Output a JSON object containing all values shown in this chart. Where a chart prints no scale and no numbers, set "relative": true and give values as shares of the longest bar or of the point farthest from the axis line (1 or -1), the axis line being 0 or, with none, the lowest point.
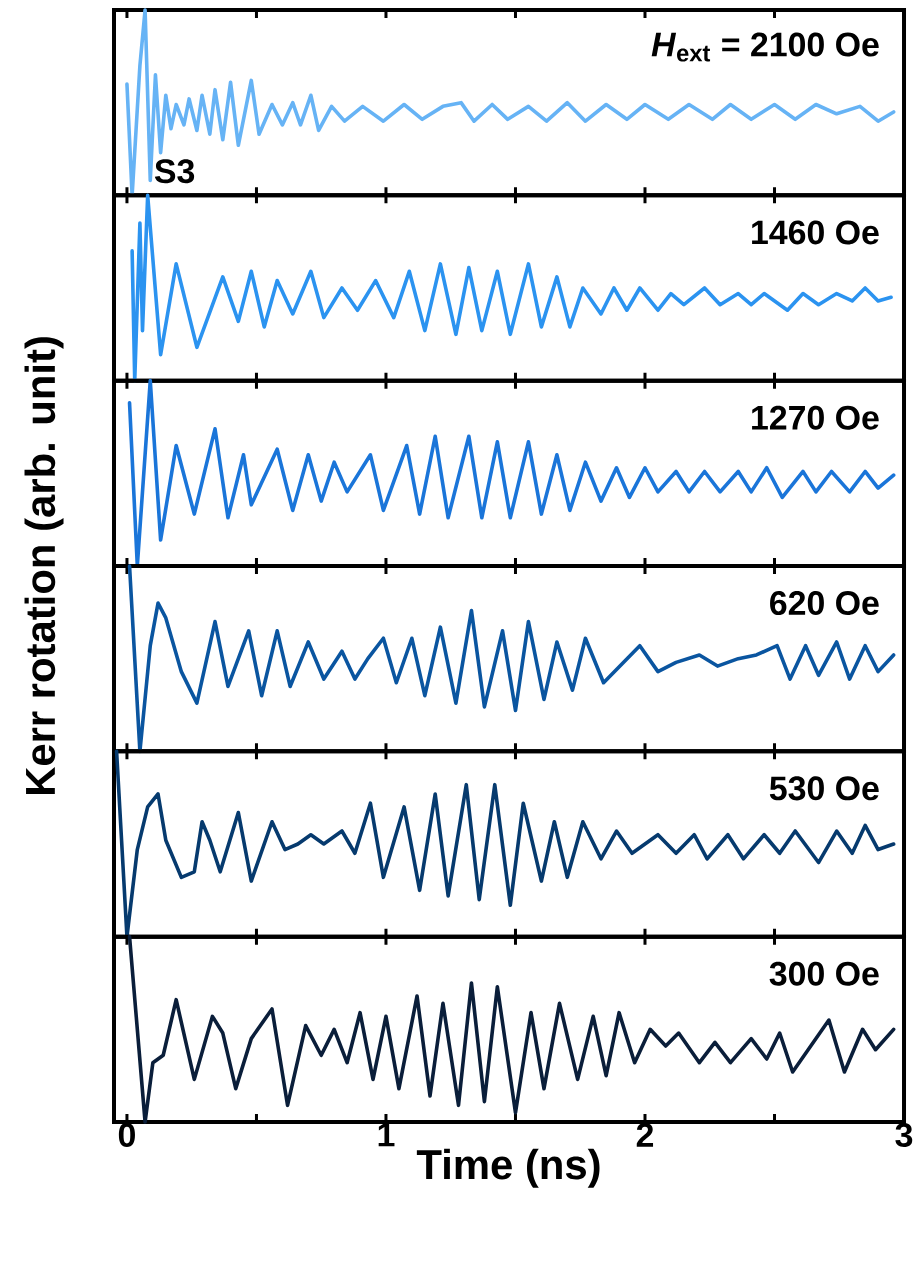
{
  "chart_data": [
    {
      "type": "line",
      "relative": true,
      "color": "#66b3f5",
      "xlim": [
        -0.05,
        3
      ],
      "xticks": [
        0,
        {
          "value": 0.5,
          "label": null
        },
        1,
        {
          "value": 1.5,
          "label": null
        },
        2,
        {
          "value": 2.5,
          "label": null
        },
        3
      ],
      "tick_labels": false,
      "annotations": [
        "*H*$_{ext}$ = 2100 Oe",
        "S3"
      ],
      "x": [
        0.0,
        0.02,
        0.05,
        0.07,
        0.09,
        0.11,
        0.13,
        0.15,
        0.17,
        0.19,
        0.22,
        0.24,
        0.27,
        0.29,
        0.32,
        0.34,
        0.37,
        0.4,
        0.43,
        0.48,
        0.51,
        0.56,
        0.6,
        0.64,
        0.67,
        0.71,
        0.74,
        0.79,
        0.84,
        0.91,
        0.99,
        1.07,
        1.14,
        1.22,
        1.29,
        1.34,
        1.41,
        1.47,
        1.55,
        1.62,
        1.7,
        1.77,
        1.85,
        1.93,
        2.0,
        2.09,
        2.17,
        2.26,
        2.33,
        2.41,
        2.5,
        2.58,
        2.66,
        2.74,
        2.83,
        2.9,
        2.96
      ],
      "values": [
        0.6,
        0.0,
        0.7,
        1.0,
        0.08,
        0.65,
        0.23,
        0.54,
        0.36,
        0.49,
        0.38,
        0.52,
        0.35,
        0.54,
        0.33,
        0.57,
        0.3,
        0.61,
        0.27,
        0.62,
        0.33,
        0.49,
        0.38,
        0.5,
        0.38,
        0.54,
        0.35,
        0.48,
        0.4,
        0.48,
        0.4,
        0.49,
        0.41,
        0.48,
        0.5,
        0.4,
        0.49,
        0.41,
        0.48,
        0.4,
        0.5,
        0.4,
        0.49,
        0.41,
        0.49,
        0.41,
        0.49,
        0.41,
        0.49,
        0.41,
        0.49,
        0.41,
        0.49,
        0.44,
        0.48,
        0.4,
        0.45
      ]
    },
    {
      "type": "line",
      "relative": true,
      "color": "#2b93f0",
      "xlim": [
        -0.05,
        3
      ],
      "xticks": [
        0,
        {
          "value": 0.5,
          "label": null
        },
        1,
        {
          "value": 1.5,
          "label": null
        },
        2,
        {
          "value": 2.5,
          "label": null
        },
        3
      ],
      "tick_labels": false,
      "annotations": [
        "1460 Oe"
      ],
      "x": [
        0.02,
        0.03,
        0.05,
        0.06,
        0.08,
        0.13,
        0.19,
        0.27,
        0.37,
        0.43,
        0.48,
        0.53,
        0.58,
        0.64,
        0.71,
        0.76,
        0.83,
        0.89,
        0.96,
        1.03,
        1.09,
        1.15,
        1.21,
        1.27,
        1.32,
        1.37,
        1.43,
        1.48,
        1.55,
        1.6,
        1.66,
        1.71,
        1.76,
        1.83,
        1.88,
        1.93,
        1.98,
        2.05,
        2.1,
        2.15,
        2.23,
        2.29,
        2.36,
        2.41,
        2.46,
        2.55,
        2.61,
        2.67,
        2.74,
        2.8,
        2.85,
        2.9,
        2.95
      ],
      "values": [
        0.7,
        0.0,
        0.85,
        0.27,
        1.0,
        0.14,
        0.63,
        0.18,
        0.56,
        0.32,
        0.59,
        0.29,
        0.54,
        0.36,
        0.59,
        0.34,
        0.5,
        0.38,
        0.54,
        0.34,
        0.59,
        0.27,
        0.63,
        0.25,
        0.61,
        0.27,
        0.59,
        0.25,
        0.63,
        0.29,
        0.56,
        0.29,
        0.5,
        0.36,
        0.5,
        0.38,
        0.5,
        0.38,
        0.47,
        0.41,
        0.5,
        0.41,
        0.47,
        0.41,
        0.47,
        0.38,
        0.47,
        0.41,
        0.47,
        0.43,
        0.5,
        0.43,
        0.45
      ]
    },
    {
      "type": "line",
      "relative": true,
      "color": "#1a75d9",
      "xlim": [
        -0.05,
        3
      ],
      "xticks": [
        0,
        {
          "value": 0.5,
          "label": null
        },
        1,
        {
          "value": 1.5,
          "label": null
        },
        2,
        {
          "value": 2.5,
          "label": null
        },
        3
      ],
      "tick_labels": false,
      "ylabel": "Kerr rotation (arb. unit)",
      "annotations": [
        "1270 Oe"
      ],
      "x": [
        0.01,
        0.04,
        0.09,
        0.13,
        0.19,
        0.26,
        0.34,
        0.39,
        0.45,
        0.48,
        0.58,
        0.64,
        0.7,
        0.75,
        0.8,
        0.85,
        0.94,
        0.99,
        1.08,
        1.13,
        1.19,
        1.24,
        1.32,
        1.37,
        1.43,
        1.48,
        1.55,
        1.6,
        1.66,
        1.71,
        1.77,
        1.83,
        1.89,
        1.94,
        2.0,
        2.05,
        2.12,
        2.17,
        2.23,
        2.29,
        2.36,
        2.41,
        2.47,
        2.53,
        2.61,
        2.66,
        2.72,
        2.79,
        2.85,
        2.9,
        2.96
      ],
      "values": [
        0.88,
        0.0,
        1.0,
        0.14,
        0.65,
        0.28,
        0.74,
        0.26,
        0.6,
        0.33,
        0.63,
        0.3,
        0.6,
        0.35,
        0.56,
        0.4,
        0.6,
        0.3,
        0.65,
        0.28,
        0.7,
        0.26,
        0.7,
        0.26,
        0.67,
        0.26,
        0.67,
        0.28,
        0.6,
        0.3,
        0.56,
        0.35,
        0.53,
        0.37,
        0.53,
        0.4,
        0.51,
        0.4,
        0.51,
        0.4,
        0.51,
        0.4,
        0.53,
        0.37,
        0.51,
        0.4,
        0.51,
        0.4,
        0.51,
        0.42,
        0.49
      ]
    },
    {
      "type": "line",
      "relative": true,
      "color": "#0a55a0",
      "xlim": [
        -0.05,
        3
      ],
      "xticks": [
        0,
        {
          "value": 0.5,
          "label": null
        },
        1,
        {
          "value": 1.5,
          "label": null
        },
        2,
        {
          "value": 2.5,
          "label": null
        },
        3
      ],
      "tick_labels": false,
      "annotations": [
        "620 Oe"
      ],
      "x": [
        0.01,
        0.05,
        0.09,
        0.12,
        0.15,
        0.21,
        0.27,
        0.34,
        0.39,
        0.47,
        0.52,
        0.58,
        0.63,
        0.7,
        0.76,
        0.83,
        0.88,
        0.93,
        0.99,
        1.04,
        1.1,
        1.15,
        1.21,
        1.27,
        1.33,
        1.38,
        1.45,
        1.5,
        1.55,
        1.61,
        1.66,
        1.72,
        1.77,
        1.84,
        1.98,
        2.05,
        2.12,
        2.21,
        2.28,
        2.36,
        2.43,
        2.51,
        2.56,
        2.62,
        2.67,
        2.74,
        2.79,
        2.85,
        2.9,
        2.96
      ],
      "values": [
        1.0,
        0.0,
        0.57,
        0.8,
        0.72,
        0.43,
        0.26,
        0.7,
        0.35,
        0.65,
        0.3,
        0.65,
        0.35,
        0.59,
        0.39,
        0.54,
        0.39,
        0.5,
        0.61,
        0.37,
        0.61,
        0.3,
        0.67,
        0.26,
        0.76,
        0.24,
        0.65,
        0.22,
        0.7,
        0.28,
        0.59,
        0.33,
        0.61,
        0.37,
        0.57,
        0.43,
        0.48,
        0.52,
        0.46,
        0.5,
        0.52,
        0.57,
        0.39,
        0.57,
        0.41,
        0.59,
        0.39,
        0.57,
        0.43,
        0.52
      ]
    },
    {
      "type": "line",
      "relative": true,
      "color": "#063a6e",
      "xlim": [
        -0.05,
        3
      ],
      "xticks": [
        0,
        {
          "value": 0.5,
          "label": null
        },
        1,
        {
          "value": 1.5,
          "label": null
        },
        2,
        {
          "value": 2.5,
          "label": null
        },
        3
      ],
      "tick_labels": false,
      "annotations": [
        "530 Oe"
      ],
      "x": [
        -0.04,
        0.0,
        0.04,
        0.08,
        0.12,
        0.15,
        0.21,
        0.26,
        0.29,
        0.32,
        0.36,
        0.43,
        0.48,
        0.56,
        0.61,
        0.66,
        0.71,
        0.76,
        0.83,
        0.88,
        0.94,
        0.99,
        1.07,
        1.13,
        1.19,
        1.24,
        1.31,
        1.36,
        1.42,
        1.48,
        1.53,
        1.6,
        1.65,
        1.7,
        1.76,
        1.83,
        1.89,
        1.95,
        2.05,
        2.12,
        2.19,
        2.24,
        2.32,
        2.38,
        2.46,
        2.52,
        2.58,
        2.67,
        2.74,
        2.8,
        2.85,
        2.9,
        2.96
      ],
      "values": [
        1.0,
        0.0,
        0.47,
        0.7,
        0.77,
        0.52,
        0.32,
        0.35,
        0.62,
        0.52,
        0.35,
        0.67,
        0.3,
        0.62,
        0.47,
        0.5,
        0.55,
        0.5,
        0.57,
        0.45,
        0.72,
        0.32,
        0.7,
        0.25,
        0.77,
        0.22,
        0.82,
        0.2,
        0.82,
        0.17,
        0.72,
        0.3,
        0.62,
        0.32,
        0.62,
        0.42,
        0.57,
        0.45,
        0.55,
        0.45,
        0.55,
        0.42,
        0.55,
        0.42,
        0.55,
        0.45,
        0.57,
        0.4,
        0.57,
        0.45,
        0.6,
        0.47,
        0.5
      ]
    },
    {
      "type": "line",
      "relative": true,
      "color": "#0a1e3a",
      "xlim": [
        -0.05,
        3
      ],
      "xticks": [
        0,
        {
          "value": 0.5,
          "label": null
        },
        1,
        {
          "value": 1.5,
          "label": null
        },
        2,
        {
          "value": 2.5,
          "label": null
        },
        3
      ],
      "tick_labels": "x",
      "xlabel": "Time (ns)",
      "annotations": [
        "300 Oe"
      ],
      "x": [
        0.01,
        0.07,
        0.1,
        0.14,
        0.19,
        0.26,
        0.33,
        0.37,
        0.42,
        0.48,
        0.56,
        0.62,
        0.69,
        0.75,
        0.8,
        0.85,
        0.9,
        0.95,
        1.0,
        1.05,
        1.12,
        1.17,
        1.22,
        1.28,
        1.33,
        1.38,
        1.43,
        1.5,
        1.56,
        1.61,
        1.67,
        1.74,
        1.8,
        1.85,
        1.9,
        1.96,
        2.02,
        2.08,
        2.13,
        2.21,
        2.27,
        2.33,
        2.41,
        2.47,
        2.52,
        2.57,
        2.64,
        2.71,
        2.77,
        2.84,
        2.89,
        2.96
      ],
      "values": [
        1.0,
        0.0,
        0.32,
        0.36,
        0.66,
        0.23,
        0.57,
        0.48,
        0.18,
        0.45,
        0.61,
        0.09,
        0.52,
        0.36,
        0.5,
        0.32,
        0.59,
        0.23,
        0.57,
        0.18,
        0.68,
        0.14,
        0.64,
        0.09,
        0.75,
        0.11,
        0.73,
        0.05,
        0.59,
        0.18,
        0.64,
        0.23,
        0.57,
        0.25,
        0.59,
        0.32,
        0.5,
        0.41,
        0.48,
        0.32,
        0.43,
        0.32,
        0.45,
        0.34,
        0.48,
        0.27,
        0.41,
        0.55,
        0.27,
        0.5,
        0.39,
        0.5
      ]
    }
  ]
}
